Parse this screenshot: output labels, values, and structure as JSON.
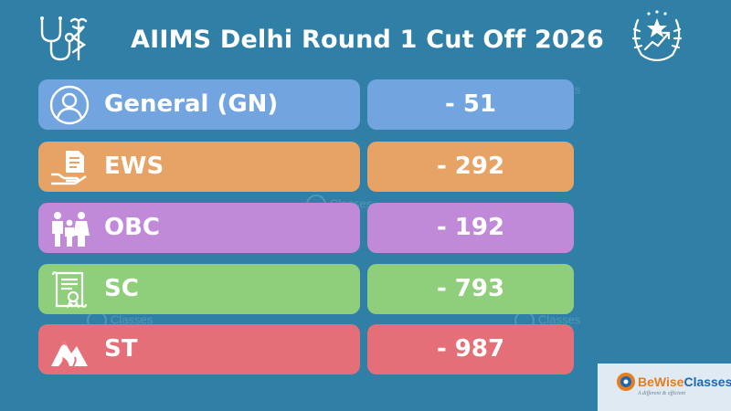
{
  "title": "AIIMS Delhi Round 1 Cut Off 2026",
  "icons": {
    "top_left": "stethoscope-caduceus-icon",
    "top_right": "laurel-star-growth-icon"
  },
  "rows": [
    {
      "category": "General (GN)",
      "cutoff": "- 51",
      "icon": "user-icon",
      "color": "#72a4e0"
    },
    {
      "category": "EWS",
      "cutoff": "- 292",
      "icon": "hand-document-icon",
      "color": "#e6a365"
    },
    {
      "category": "OBC",
      "cutoff": "- 192",
      "icon": "family-icon",
      "color": "#c18ad8"
    },
    {
      "category": "SC",
      "cutoff": "- 793",
      "icon": "certificate-scroll-icon",
      "color": "#8fcf7b"
    },
    {
      "category": "ST",
      "cutoff": "- 987",
      "icon": "mountain-icon",
      "color": "#e46f78"
    }
  ],
  "brand": {
    "name_part1": "BeWise",
    "name_part2": "Classes",
    "tagline": "A different & efficient"
  },
  "watermark_text": "Classes"
}
